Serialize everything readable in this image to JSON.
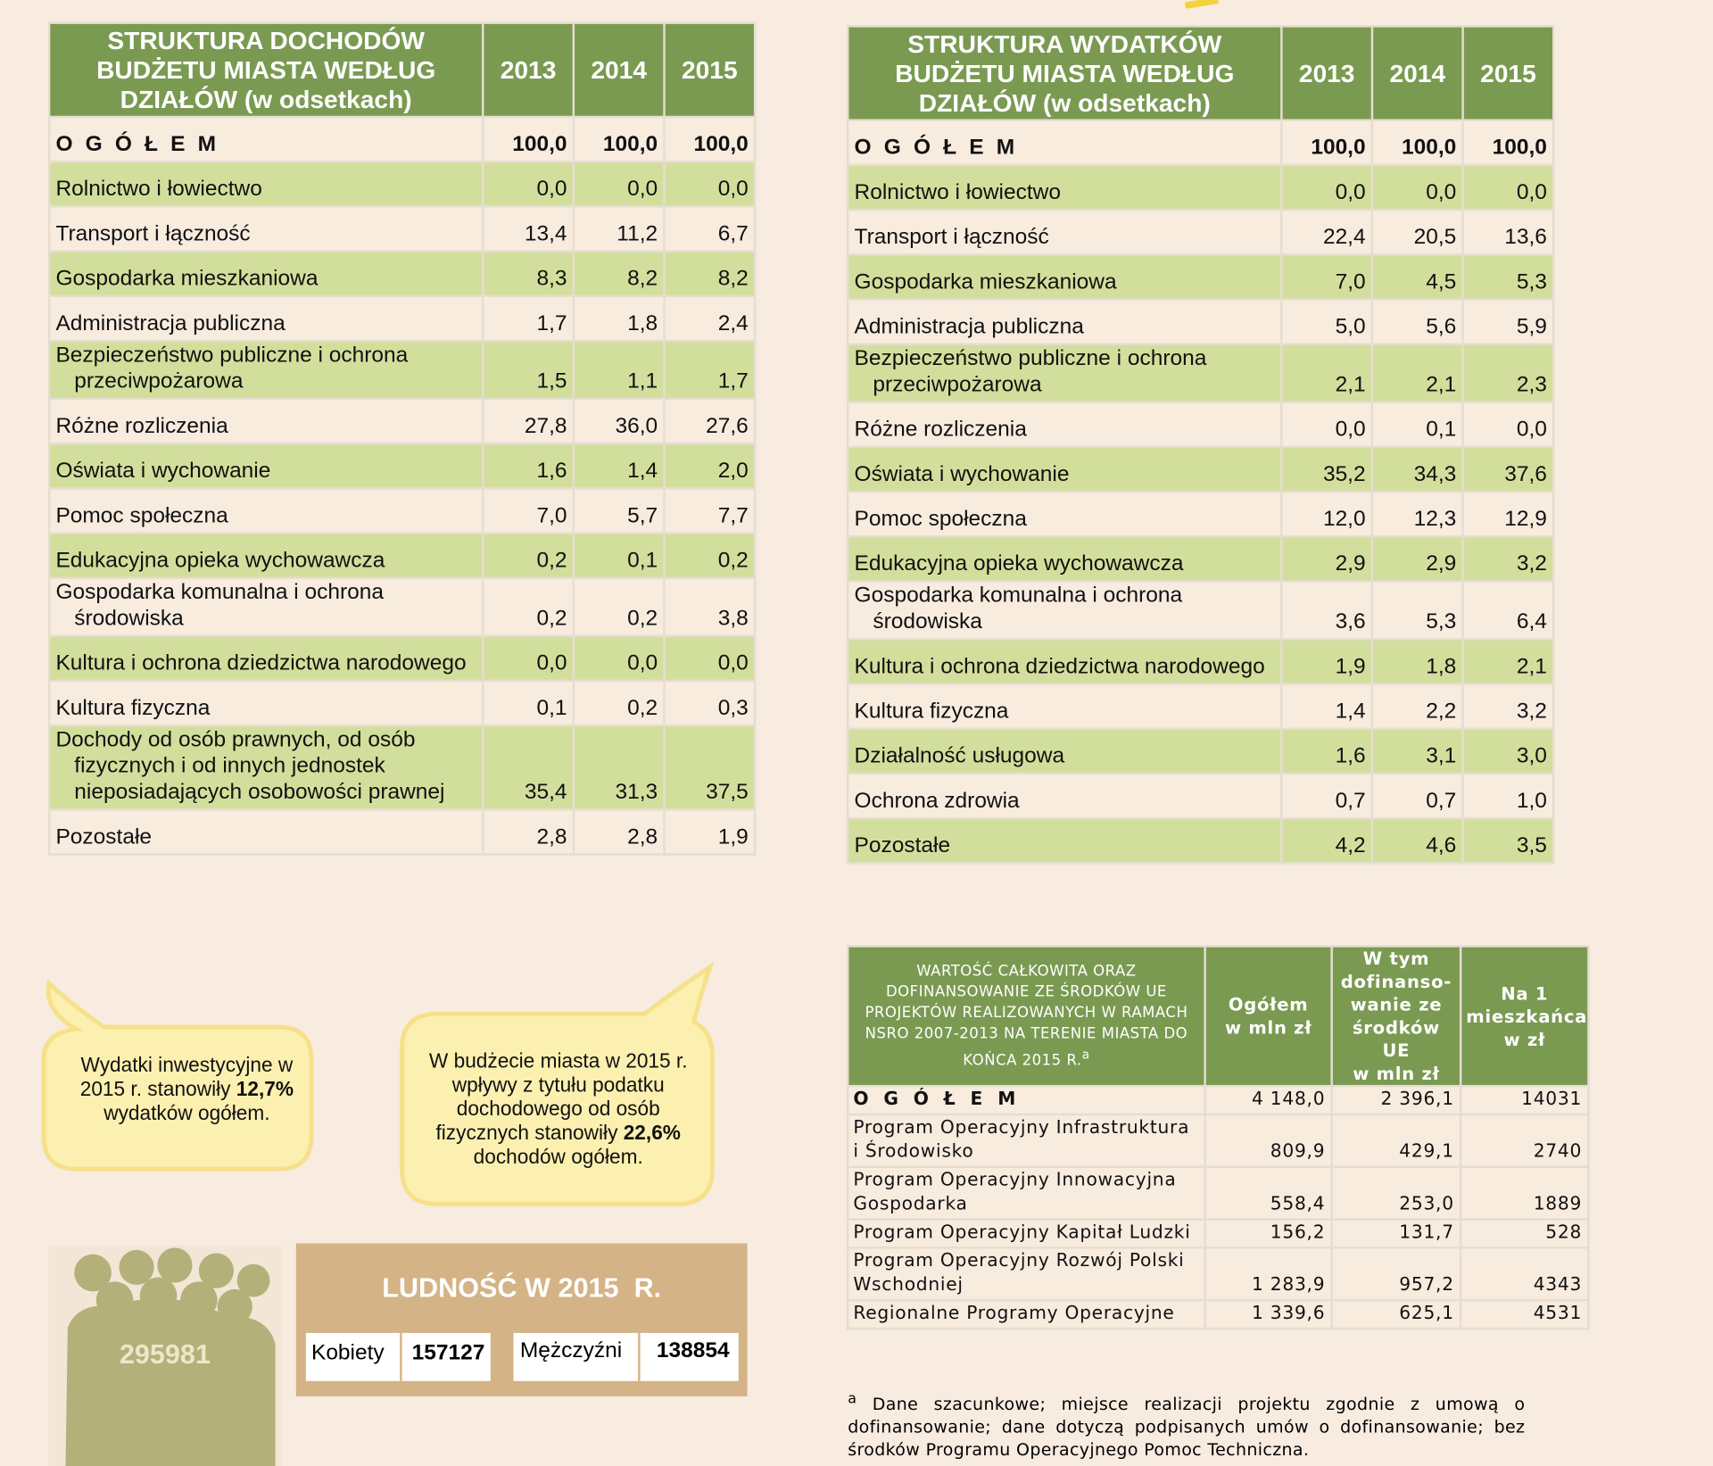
{
  "income": {
    "title": "STRUKTURA DOCHODÓW\nBUDŻETU MIASTA WEDŁUG\nDZIAŁÓW  (w odsetkach)",
    "years": [
      "2013",
      "2014",
      "2015"
    ],
    "rows": [
      [
        "O G Ó Ł E M",
        "100,0",
        "100,0",
        "100,0"
      ],
      [
        "Rolnictwo i łowiectwo",
        "0,0",
        "0,0",
        "0,0"
      ],
      [
        "Transport i łączność",
        "13,4",
        "11,2",
        "6,7"
      ],
      [
        "Gospodarka mieszkaniowa",
        "8,3",
        "8,2",
        "8,2"
      ],
      [
        "Administracja publiczna",
        "1,7",
        "1,8",
        "2,4"
      ],
      [
        "Bezpieczeństwo publiczne i ochrona przeciwpożarowa",
        "1,5",
        "1,1",
        "1,7"
      ],
      [
        "Różne rozliczenia",
        "27,8",
        "36,0",
        "27,6"
      ],
      [
        "Oświata i wychowanie",
        "1,6",
        "1,4",
        "2,0"
      ],
      [
        "Pomoc społeczna",
        "7,0",
        "5,7",
        "7,7"
      ],
      [
        "Edukacyjna opieka wychowawcza",
        "0,2",
        "0,1",
        "0,2"
      ],
      [
        "Gospodarka komunalna i ochrona środowiska",
        "0,2",
        "0,2",
        "3,8"
      ],
      [
        "Kultura i ochrona dziedzictwa narodowego",
        "0,0",
        "0,0",
        "0,0"
      ],
      [
        "Kultura fizyczna",
        "0,1",
        "0,2",
        "0,3"
      ],
      [
        "Dochody od osób prawnych, od osób fizycznych i od innych jednostek nieposiadających osobowości prawnej",
        "35,4",
        "31,3",
        "37,5"
      ],
      [
        "Pozostałe",
        "2,8",
        "2,8",
        "1,9"
      ]
    ]
  },
  "expenses": {
    "title": "STRUKTURA WYDATKÓW\nBUDŻETU MIASTA WEDŁUG\nDZIAŁÓW   (w odsetkach)",
    "years": [
      "2013",
      "2014",
      "2015"
    ],
    "rows": [
      [
        "O G Ó Ł E M",
        "100,0",
        "100,0",
        "100,0"
      ],
      [
        "Rolnictwo i łowiectwo",
        "0,0",
        "0,0",
        "0,0"
      ],
      [
        "Transport i łączność",
        "22,4",
        "20,5",
        "13,6"
      ],
      [
        "Gospodarka mieszkaniowa",
        "7,0",
        "4,5",
        "5,3"
      ],
      [
        "Administracja publiczna",
        "5,0",
        "5,6",
        "5,9"
      ],
      [
        "Bezpieczeństwo publiczne i ochrona przeciwpożarowa",
        "2,1",
        "2,1",
        "2,3"
      ],
      [
        "Różne rozliczenia",
        "0,0",
        "0,1",
        "0,0"
      ],
      [
        "Oświata i wychowanie",
        "35,2",
        "34,3",
        "37,6"
      ],
      [
        "Pomoc społeczna",
        "12,0",
        "12,3",
        "12,9"
      ],
      [
        "Edukacyjna opieka wychowawcza",
        "2,9",
        "2,9",
        "3,2"
      ],
      [
        "Gospodarka komunalna i ochrona środowiska",
        "3,6",
        "5,3",
        "6,4"
      ],
      [
        "Kultura i ochrona dziedzictwa narodowego",
        "1,9",
        "1,8",
        "2,1"
      ],
      [
        "Kultura fizyczna",
        "1,4",
        "2,2",
        "3,2"
      ],
      [
        "Działalność usługowa",
        "1,6",
        "3,1",
        "3,0"
      ],
      [
        "Ochrona zdrowia",
        "0,7",
        "0,7",
        "1,0"
      ],
      [
        "Pozostałe",
        "4,2",
        "4,6",
        "3,5"
      ]
    ]
  },
  "eu": {
    "title": "WARTOŚĆ CAŁKOWITA ORAZ DOFINANSOWANIE ZE ŚRODKÓW UE PROJEKTÓW REALIZOWANYCH W RAMACH NSRO 2007-2013 NA TERENIE MIASTA DO KOŃCA 2015 R.",
    "title_mark": "a",
    "columns": [
      "Ogółem\nw mln zł",
      "W tym\ndofinanso-\nwanie ze\nśrodków UE\nw mln zł",
      "Na 1\nmieszkańca\nw zł"
    ],
    "rows": [
      [
        "O G Ó Ł E M",
        "4 148,0",
        "2 396,1",
        "14031"
      ],
      [
        "Program Operacyjny Infrastruktura i Środowisko",
        "809,9",
        "429,1",
        "2740"
      ],
      [
        "Program Operacyjny Innowacyjna Gospodarka",
        "558,4",
        "253,0",
        "1889"
      ],
      [
        "Program Operacyjny Kapitał Ludzki",
        "156,2",
        "131,7",
        "528"
      ],
      [
        "Program Operacyjny Rozwój Polski Wschodniej",
        "1 283,9",
        "957,2",
        "4343"
      ],
      [
        "Regionalne Programy Operacyjne",
        "1 339,6",
        "625,1",
        "4531"
      ]
    ]
  },
  "footnote": {
    "mark": "a",
    "text": "Dane szacunkowe; miejsce realizacji projektu zgodnie z umową o dofinansowanie; dane dotyczą podpisanych umów o dofinansowanie; bez środków Programu Operacyjnego Pomoc Techniczna."
  },
  "bubbles": [
    {
      "before": "Wydatki inwestycyjne w 2015 r. stanowiły ",
      "bold": "12,7%",
      "after": " wydatków ogółem."
    },
    {
      "before": "W budżecie miasta w 2015 r. wpływy z tytułu podatku dochodowego od osób fizycznych stanowiły ",
      "bold": "22,6%",
      "after": " dochodów ogółem."
    }
  ],
  "population": {
    "total": "295981",
    "title": "LUDNOŚĆ W 2015  R.",
    "women_label": "Kobiety",
    "women": "157127",
    "men_label": "Mężczyźni",
    "men": "138854"
  }
}
